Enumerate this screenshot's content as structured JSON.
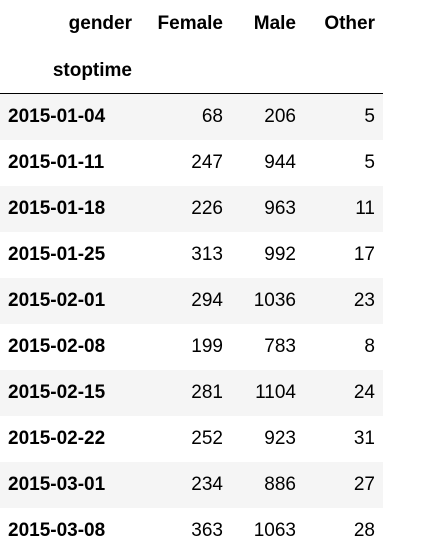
{
  "table": {
    "column_axis_name": "gender",
    "index_name": "stoptime",
    "columns": [
      "Female",
      "Male",
      "Other"
    ],
    "rows": [
      {
        "index": "2015-01-04",
        "values": [
          "68",
          "206",
          "5"
        ]
      },
      {
        "index": "2015-01-11",
        "values": [
          "247",
          "944",
          "5"
        ]
      },
      {
        "index": "2015-01-18",
        "values": [
          "226",
          "963",
          "11"
        ]
      },
      {
        "index": "2015-01-25",
        "values": [
          "313",
          "992",
          "17"
        ]
      },
      {
        "index": "2015-02-01",
        "values": [
          "294",
          "1036",
          "23"
        ]
      },
      {
        "index": "2015-02-08",
        "values": [
          "199",
          "783",
          "8"
        ]
      },
      {
        "index": "2015-02-15",
        "values": [
          "281",
          "1104",
          "24"
        ]
      },
      {
        "index": "2015-02-22",
        "values": [
          "252",
          "923",
          "31"
        ]
      },
      {
        "index": "2015-03-01",
        "values": [
          "234",
          "886",
          "27"
        ]
      },
      {
        "index": "2015-03-08",
        "values": [
          "363",
          "1063",
          "28"
        ]
      }
    ]
  },
  "colors": {
    "stripe": "#f5f5f5",
    "background": "#ffffff",
    "text": "#000000",
    "header_rule": "#000000"
  }
}
